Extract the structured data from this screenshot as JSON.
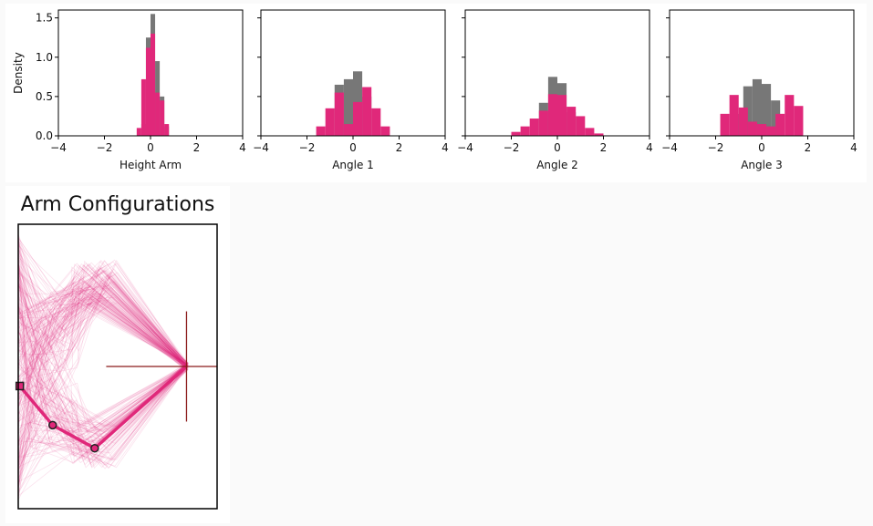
{
  "chart_data": [
    {
      "type": "bar",
      "xlabel": "Height Arm",
      "ylabel": "Density",
      "xlim": [
        -4,
        4
      ],
      "ylim": [
        0,
        1.6
      ],
      "xticks": [
        "−4",
        "−2",
        "0",
        "2",
        "4"
      ],
      "yticks": [
        "0.0",
        "0.5",
        "1.0",
        "1.5"
      ],
      "series": [
        {
          "color": "#777777",
          "bins": [
            [
              -0.4,
              -0.2,
              0.15
            ],
            [
              -0.2,
              0.0,
              1.25
            ],
            [
              0.0,
              0.2,
              1.55
            ],
            [
              0.2,
              0.4,
              0.95
            ],
            [
              0.4,
              0.6,
              0.5
            ],
            [
              0.6,
              0.8,
              0.12
            ]
          ]
        },
        {
          "color": "#e0287a",
          "bins": [
            [
              -0.6,
              -0.4,
              0.1
            ],
            [
              -0.4,
              -0.2,
              0.72
            ],
            [
              -0.2,
              0.0,
              1.12
            ],
            [
              0.0,
              0.2,
              1.3
            ],
            [
              0.2,
              0.4,
              0.55
            ],
            [
              0.4,
              0.6,
              0.45
            ],
            [
              0.6,
              0.8,
              0.15
            ]
          ]
        }
      ]
    },
    {
      "type": "bar",
      "xlabel": "Angle 1",
      "xlim": [
        -4,
        4
      ],
      "ylim": [
        0,
        1.6
      ],
      "xticks": [
        "−4",
        "−2",
        "0",
        "2",
        "4"
      ],
      "series": [
        {
          "color": "#777777",
          "bins": [
            [
              -0.8,
              -0.4,
              0.65
            ],
            [
              -0.4,
              0.0,
              0.72
            ],
            [
              0.0,
              0.4,
              0.82
            ],
            [
              0.4,
              0.8,
              0.5
            ]
          ]
        },
        {
          "color": "#e0287a",
          "bins": [
            [
              -1.6,
              -1.2,
              0.12
            ],
            [
              -1.2,
              -0.8,
              0.35
            ],
            [
              -0.8,
              -0.4,
              0.55
            ],
            [
              -0.4,
              0.0,
              0.15
            ],
            [
              0.0,
              0.4,
              0.43
            ],
            [
              0.4,
              0.8,
              0.62
            ],
            [
              0.8,
              1.2,
              0.35
            ],
            [
              1.2,
              1.6,
              0.12
            ]
          ]
        }
      ]
    },
    {
      "type": "bar",
      "xlabel": "Angle 2",
      "xlim": [
        -4,
        4
      ],
      "ylim": [
        0,
        1.6
      ],
      "xticks": [
        "−4",
        "−2",
        "0",
        "2",
        "4"
      ],
      "series": [
        {
          "color": "#777777",
          "bins": [
            [
              -0.8,
              -0.4,
              0.42
            ],
            [
              -0.4,
              0.0,
              0.75
            ],
            [
              0.0,
              0.4,
              0.67
            ],
            [
              0.4,
              0.8,
              0.3
            ]
          ]
        },
        {
          "color": "#e0287a",
          "bins": [
            [
              -2.0,
              -1.6,
              0.05
            ],
            [
              -1.6,
              -1.2,
              0.12
            ],
            [
              -1.2,
              -0.8,
              0.22
            ],
            [
              -0.8,
              -0.4,
              0.32
            ],
            [
              -0.4,
              0.0,
              0.53
            ],
            [
              0.0,
              0.4,
              0.52
            ],
            [
              0.4,
              0.8,
              0.37
            ],
            [
              0.8,
              1.2,
              0.25
            ],
            [
              1.2,
              1.6,
              0.1
            ],
            [
              1.6,
              2.0,
              0.03
            ]
          ]
        }
      ]
    },
    {
      "type": "bar",
      "xlabel": "Angle 3",
      "xlim": [
        -4,
        4
      ],
      "ylim": [
        0,
        1.6
      ],
      "xticks": [
        "−4",
        "−2",
        "0",
        "2",
        "4"
      ],
      "series": [
        {
          "color": "#777777",
          "bins": [
            [
              -1.2,
              -0.8,
              0.28
            ],
            [
              -0.8,
              -0.4,
              0.63
            ],
            [
              -0.4,
              0.0,
              0.72
            ],
            [
              0.0,
              0.4,
              0.66
            ],
            [
              0.4,
              0.8,
              0.45
            ]
          ]
        },
        {
          "color": "#e0287a",
          "bins": [
            [
              -1.8,
              -1.4,
              0.28
            ],
            [
              -1.4,
              -1.0,
              0.52
            ],
            [
              -1.0,
              -0.6,
              0.36
            ],
            [
              -0.6,
              -0.2,
              0.18
            ],
            [
              -0.2,
              0.2,
              0.15
            ],
            [
              0.2,
              0.6,
              0.12
            ],
            [
              0.6,
              1.0,
              0.28
            ],
            [
              1.0,
              1.4,
              0.52
            ],
            [
              1.4,
              1.8,
              0.38
            ]
          ]
        }
      ]
    },
    {
      "type": "line",
      "title": "Arm Configurations",
      "xlim": [
        -1.0,
        1.6
      ],
      "ylim": [
        -1.6,
        1.6
      ],
      "target_crosshair": [
        1.2,
        0.0
      ],
      "highlighted_arm": [
        [
          -0.98,
          -0.22
        ],
        [
          -0.55,
          -0.66
        ],
        [
          0.0,
          -0.92
        ],
        [
          1.2,
          0.0
        ]
      ],
      "color": "#e0287a",
      "target_color": "#8b1a1a"
    }
  ]
}
